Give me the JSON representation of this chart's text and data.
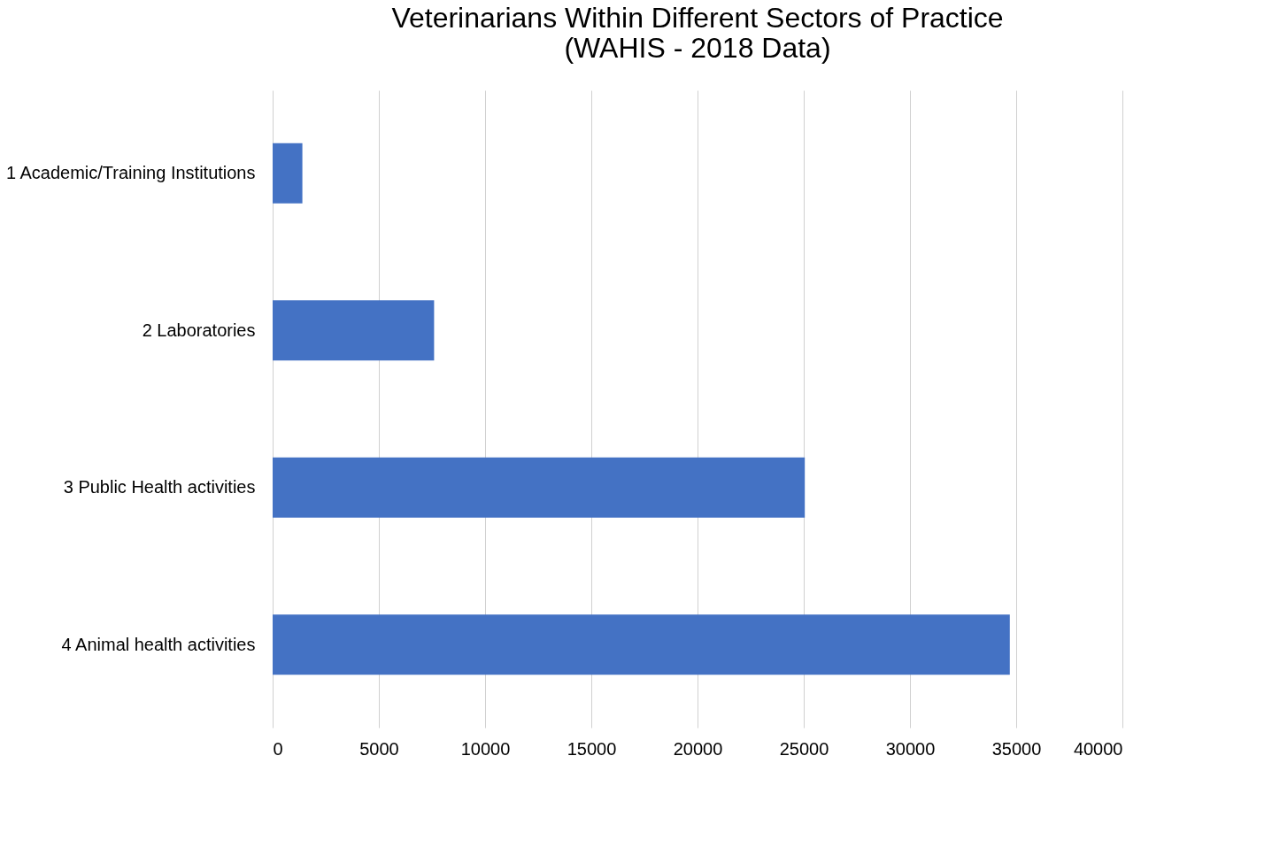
{
  "chart_data": {
    "type": "bar",
    "orientation": "horizontal",
    "title": [
      "Veterinarians Within Different Sectors of Practice",
      "(WAHIS - 2018 Data)"
    ],
    "categories": [
      "1 Academic/Training Institutions",
      "2 Laboratories",
      "3 Public Health activities",
      "4 Animal health activities"
    ],
    "values": [
      1400,
      7600,
      25050,
      34700
    ],
    "color": "#4472c4",
    "xlim": [
      0,
      40000
    ],
    "xticks": [
      0,
      5000,
      10000,
      15000,
      20000,
      25000,
      30000,
      35000,
      40000
    ],
    "grid": "x"
  }
}
